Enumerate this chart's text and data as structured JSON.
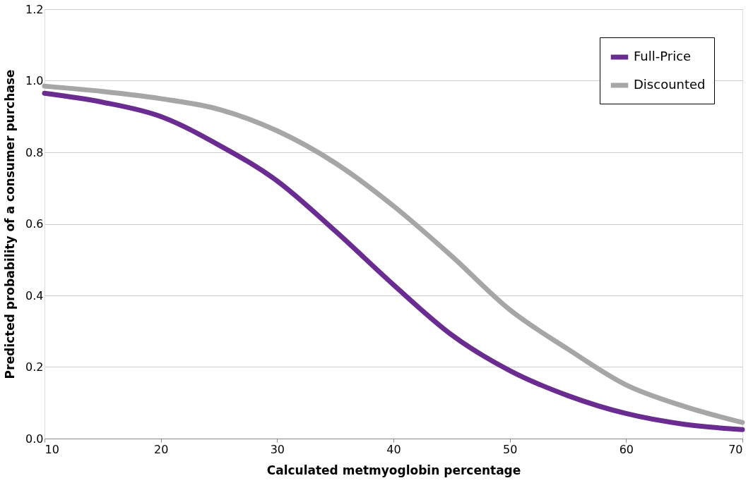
{
  "chart_data": {
    "type": "line",
    "xlabel": "Calculated metmyoglobin percentage",
    "ylabel": "Predicted probability of a consumer purchase",
    "x": [
      10,
      15,
      20,
      25,
      30,
      35,
      40,
      45,
      50,
      55,
      60,
      65,
      70
    ],
    "series": [
      {
        "name": "Full-Price",
        "color": "#6a2c91",
        "values": [
          0.965,
          0.94,
          0.9,
          0.82,
          0.72,
          0.58,
          0.43,
          0.29,
          0.19,
          0.12,
          0.07,
          0.04,
          0.025
        ]
      },
      {
        "name": "Discounted",
        "color": "#a6a6a6",
        "values": [
          0.985,
          0.97,
          0.95,
          0.92,
          0.86,
          0.77,
          0.65,
          0.51,
          0.36,
          0.25,
          0.15,
          0.09,
          0.045
        ]
      }
    ],
    "xlim": [
      10,
      70
    ],
    "xticks": [
      10,
      20,
      30,
      40,
      50,
      60,
      70
    ],
    "ylim": [
      0,
      1.2
    ],
    "yticks": [
      {
        "value": 0,
        "label": "0.0"
      },
      {
        "value": 0.2,
        "label": "0.2"
      },
      {
        "value": 0.4,
        "label": "0.4"
      },
      {
        "value": 0.6,
        "label": "0.6"
      },
      {
        "value": 0.8,
        "label": "0.8"
      },
      {
        "value": 1.0,
        "label": "1.0"
      },
      {
        "value": 1.2,
        "label": "1.2"
      }
    ],
    "grid": "y",
    "legend": "top right",
    "marker": "none",
    "line_style": "solid"
  }
}
